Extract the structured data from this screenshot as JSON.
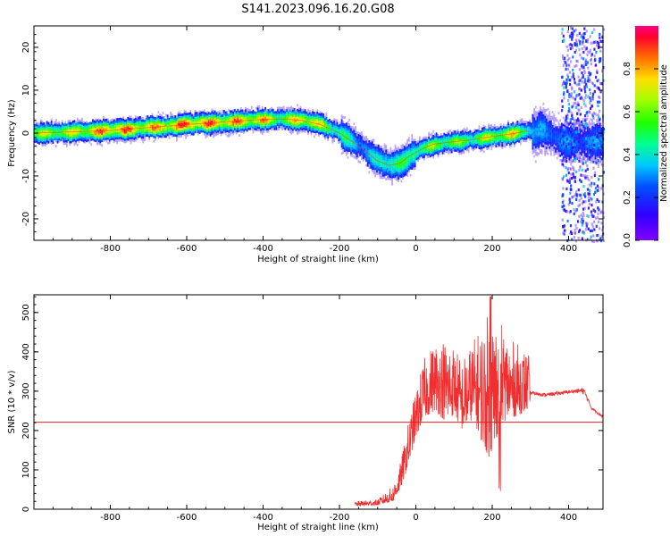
{
  "title": "S141.2023.096.16.20.G08",
  "colors": {
    "snr_line": "#f03030",
    "threshold_line": "#e02020",
    "frame": "#000000"
  },
  "chart_data": [
    {
      "type": "heatmap",
      "xlabel": "Height of straight line (km)",
      "ylabel": "Frequency (Hz)",
      "xlim": [
        -1000,
        490
      ],
      "ylim": [
        -25,
        25
      ],
      "x_ticks": [
        -800,
        -600,
        -400,
        -200,
        0,
        200,
        400
      ],
      "x_tick_labels": [
        "-800",
        "-600",
        "-400",
        "-200",
        "0",
        "200",
        "400"
      ],
      "y_ticks": [
        -20,
        -10,
        0,
        10,
        20
      ],
      "y_tick_labels": [
        "-20",
        "-10",
        "0",
        "10",
        "20"
      ],
      "colorbar": {
        "label": "Normalized spectral amplitude",
        "range": [
          0,
          1
        ],
        "ticks": [
          0.0,
          0.2,
          0.4,
          0.6,
          0.8
        ],
        "tick_labels": [
          "0.0",
          "0.2",
          "0.4",
          "0.6",
          "0.8"
        ],
        "colormap": "rainbow (purple to red)"
      },
      "ridge": {
        "x": [
          -1000,
          -900,
          -800,
          -700,
          -600,
          -500,
          -400,
          -350,
          -300,
          -250,
          -200,
          -150,
          -100,
          -70,
          -40,
          -20,
          0,
          20,
          50,
          100,
          150,
          200,
          250,
          290,
          310,
          330,
          350,
          380
        ],
        "frequency": [
          0,
          0.3,
          0.6,
          1.3,
          2,
          2.6,
          3.2,
          3.3,
          3,
          2,
          0,
          -3,
          -6.5,
          -7.5,
          -7,
          -5.5,
          -4.5,
          -3.5,
          -2.5,
          -2,
          -1.5,
          -0.8,
          -0.2,
          0.5,
          0,
          1,
          0,
          -2
        ],
        "amplitude": [
          0.65,
          0.7,
          0.9,
          0.8,
          0.9,
          0.85,
          0.8,
          0.6,
          0.85,
          0.7,
          0.5,
          0.35,
          0.4,
          0.55,
          0.5,
          0.5,
          0.6,
          0.55,
          0.65,
          0.6,
          0.6,
          0.7,
          0.75,
          0.55,
          0.3,
          0.3,
          0.3,
          0.3
        ]
      }
    },
    {
      "type": "line",
      "xlabel": "Height of straight line (km)",
      "ylabel": "SNR (10 * v/v)",
      "xlim": [
        -1000,
        490
      ],
      "ylim": [
        0,
        545
      ],
      "x_ticks": [
        -800,
        -600,
        -400,
        -200,
        0,
        200,
        400
      ],
      "x_tick_labels": [
        "-800",
        "-600",
        "-400",
        "-200",
        "0",
        "200",
        "400"
      ],
      "y_ticks": [
        0,
        100,
        200,
        300,
        400,
        500
      ],
      "y_tick_labels": [
        "0",
        "100",
        "200",
        "300",
        "400",
        "500"
      ],
      "threshold": 221,
      "series": [
        {
          "x": [
            -160,
            -100,
            -60,
            -40,
            -20,
            0,
            20,
            50,
            80,
            100,
            120,
            150,
            180,
            200,
            220,
            250,
            270,
            295,
            300,
            340,
            380,
            420,
            440,
            460,
            490
          ],
          "low": [
            8,
            10,
            18,
            50,
            110,
            180,
            230,
            250,
            220,
            240,
            200,
            230,
            150,
            120,
            220,
            230,
            240,
            250,
            285,
            280,
            285,
            290,
            280,
            250,
            225
          ],
          "high": [
            20,
            25,
            60,
            120,
            220,
            300,
            380,
            430,
            440,
            420,
            380,
            430,
            480,
            520,
            480,
            430,
            420,
            400,
            300,
            295,
            300,
            305,
            310,
            260,
            240
          ]
        }
      ]
    }
  ]
}
